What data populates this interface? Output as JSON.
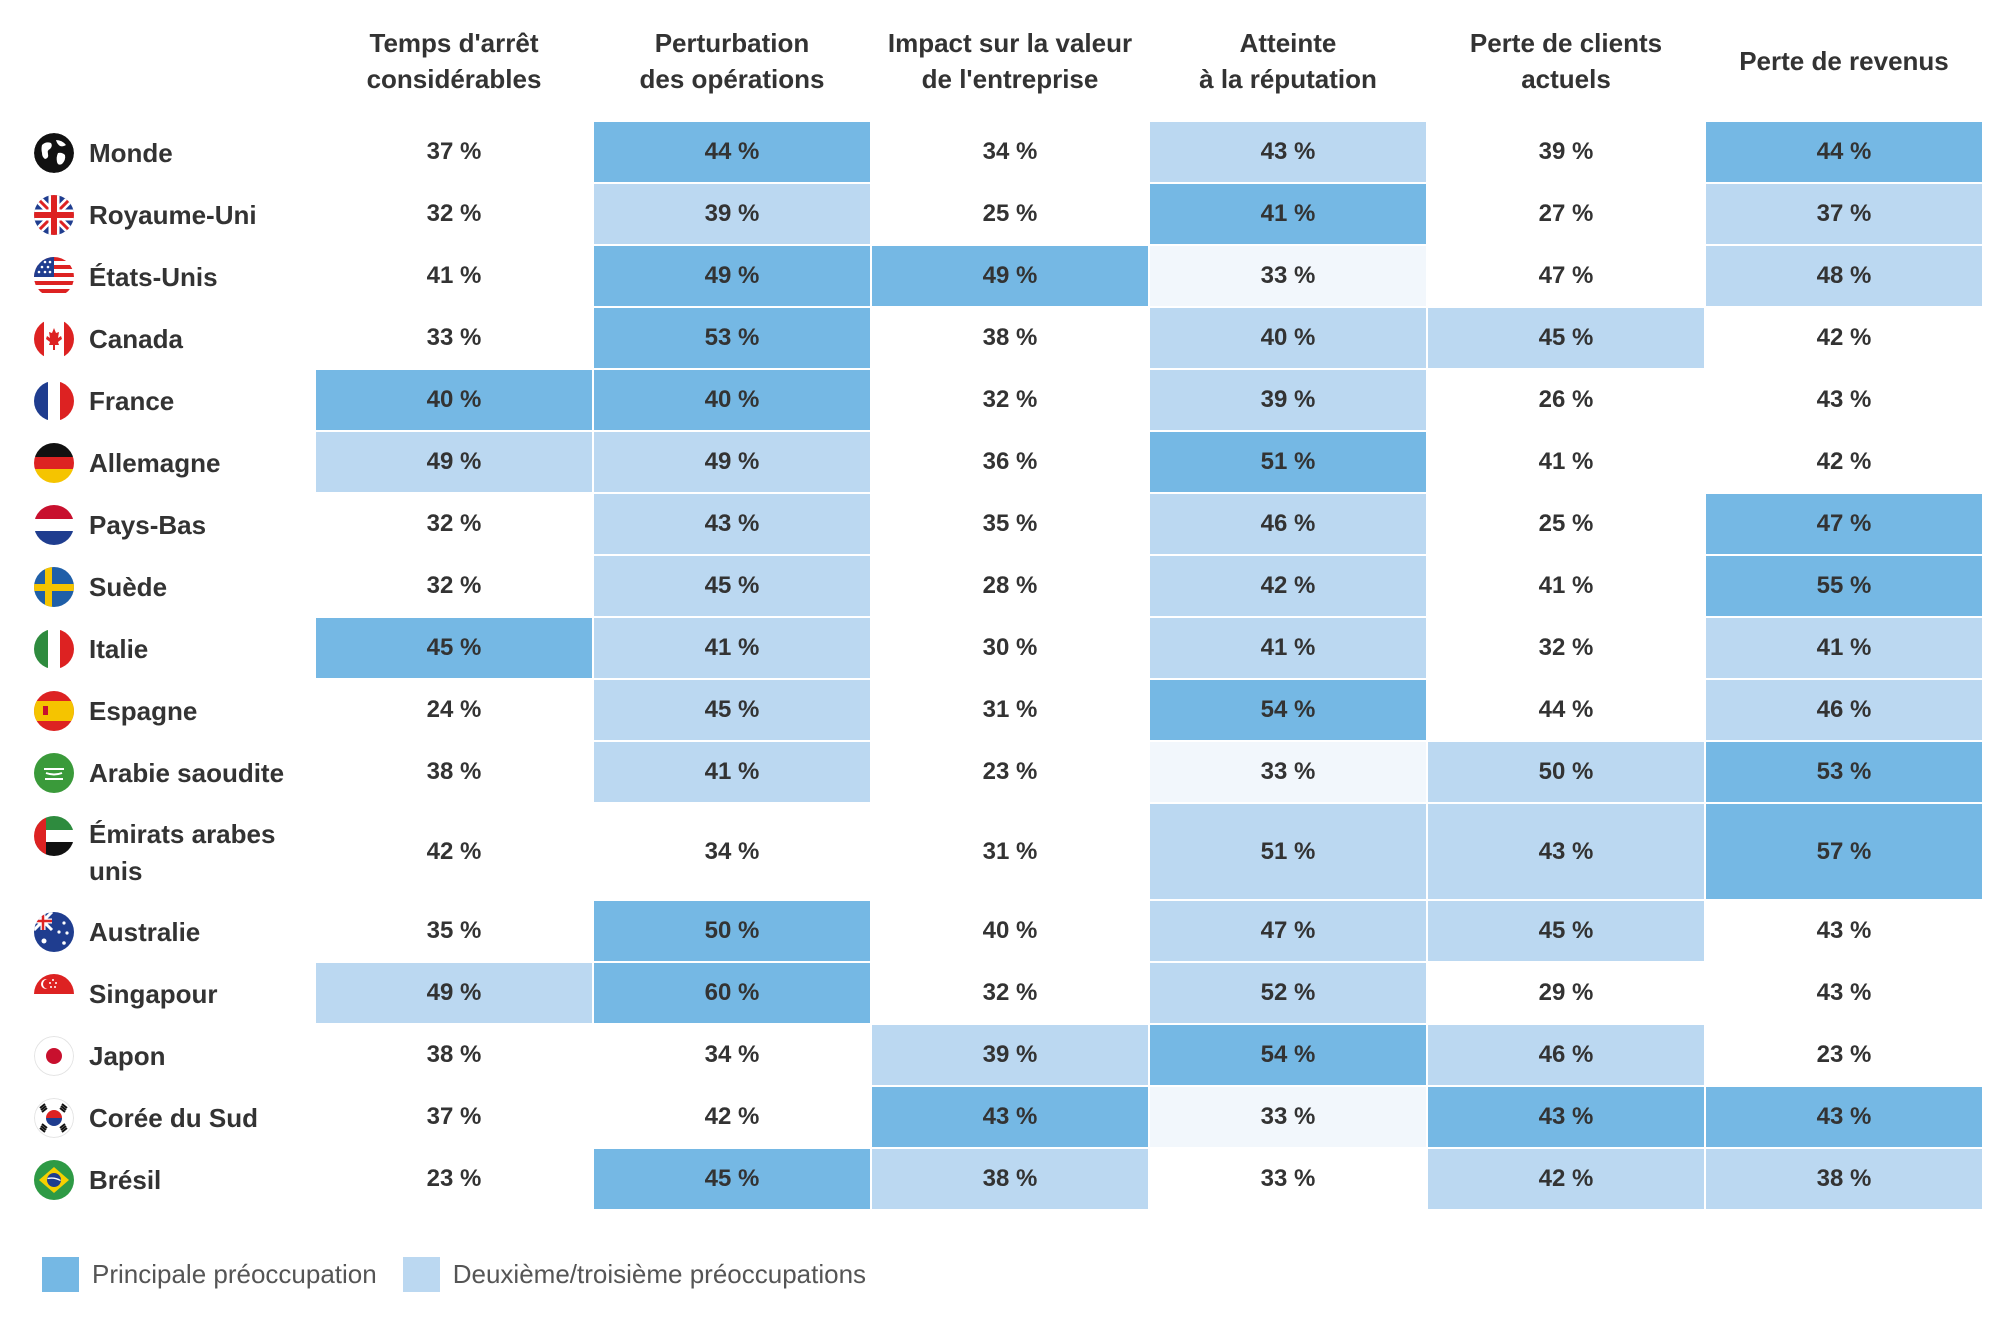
{
  "chart_data": {
    "type": "table",
    "columns": [
      "Temps d'arrêt\nconsidérables",
      "Perturbation\ndes opérations",
      "Impact sur la valeur\nde l'entreprise",
      "Atteinte\nà la réputation",
      "Perte de clients\nactuels",
      "Perte de revenus"
    ],
    "rows": [
      {
        "country": "Monde",
        "flag": "globe-icon",
        "values": [
          "37 %",
          "44 %",
          "34 %",
          "43 %",
          "39 %",
          "44 %"
        ],
        "levels": [
          "none",
          "primary",
          "none",
          "secondary",
          "none",
          "primary"
        ]
      },
      {
        "country": "Royaume-Uni",
        "flag": "uk-flag-icon",
        "values": [
          "32 %",
          "39 %",
          "25 %",
          "41 %",
          "27 %",
          "37 %"
        ],
        "levels": [
          "none",
          "secondary",
          "none",
          "primary",
          "none",
          "secondary"
        ]
      },
      {
        "country": "États-Unis",
        "flag": "us-flag-icon",
        "values": [
          "41 %",
          "49 %",
          "49 %",
          "33 %",
          "47 %",
          "48 %"
        ],
        "levels": [
          "none",
          "primary",
          "primary",
          "faint",
          "none",
          "secondary"
        ]
      },
      {
        "country": "Canada",
        "flag": "canada-flag-icon",
        "values": [
          "33 %",
          "53 %",
          "38 %",
          "40 %",
          "45 %",
          "42 %"
        ],
        "levels": [
          "none",
          "primary",
          "none",
          "secondary",
          "secondary",
          "none"
        ]
      },
      {
        "country": "France",
        "flag": "france-flag-icon",
        "values": [
          "40 %",
          "40 %",
          "32 %",
          "39 %",
          "26 %",
          "43 %"
        ],
        "levels": [
          "primary",
          "primary",
          "none",
          "secondary",
          "none",
          "none"
        ]
      },
      {
        "country": "Allemagne",
        "flag": "germany-flag-icon",
        "values": [
          "49 %",
          "49 %",
          "36 %",
          "51 %",
          "41 %",
          "42 %"
        ],
        "levels": [
          "secondary",
          "secondary",
          "none",
          "primary",
          "none",
          "none"
        ]
      },
      {
        "country": "Pays-Bas",
        "flag": "netherlands-flag-icon",
        "values": [
          "32 %",
          "43 %",
          "35 %",
          "46 %",
          "25 %",
          "47 %"
        ],
        "levels": [
          "none",
          "secondary",
          "none",
          "secondary",
          "none",
          "primary"
        ]
      },
      {
        "country": "Suède",
        "flag": "sweden-flag-icon",
        "values": [
          "32 %",
          "45 %",
          "28 %",
          "42 %",
          "41 %",
          "55 %"
        ],
        "levels": [
          "none",
          "secondary",
          "none",
          "secondary",
          "none",
          "primary"
        ]
      },
      {
        "country": "Italie",
        "flag": "italy-flag-icon",
        "values": [
          "45 %",
          "41 %",
          "30 %",
          "41 %",
          "32 %",
          "41 %"
        ],
        "levels": [
          "primary",
          "secondary",
          "none",
          "secondary",
          "none",
          "secondary"
        ]
      },
      {
        "country": "Espagne",
        "flag": "spain-flag-icon",
        "values": [
          "24 %",
          "45 %",
          "31 %",
          "54 %",
          "44 %",
          "46 %"
        ],
        "levels": [
          "none",
          "secondary",
          "none",
          "primary",
          "none",
          "secondary"
        ]
      },
      {
        "country": "Arabie saoudite",
        "flag": "saudi-arabia-flag-icon",
        "values": [
          "38 %",
          "41 %",
          "23 %",
          "33 %",
          "50 %",
          "53 %"
        ],
        "levels": [
          "none",
          "secondary",
          "none",
          "faint",
          "secondary",
          "primary"
        ]
      },
      {
        "country": "Émirats arabes unis",
        "flag": "uae-flag-icon",
        "values": [
          "42 %",
          "34 %",
          "31 %",
          "51 %",
          "43 %",
          "57 %"
        ],
        "levels": [
          "none",
          "none",
          "none",
          "secondary",
          "secondary",
          "primary"
        ],
        "tall": true
      },
      {
        "country": "Australie",
        "flag": "australia-flag-icon",
        "values": [
          "35 %",
          "50 %",
          "40 %",
          "47 %",
          "45 %",
          "43 %"
        ],
        "levels": [
          "none",
          "primary",
          "none",
          "secondary",
          "secondary",
          "none"
        ]
      },
      {
        "country": "Singapour",
        "flag": "singapore-flag-icon",
        "values": [
          "49 %",
          "60 %",
          "32 %",
          "52 %",
          "29 %",
          "43 %"
        ],
        "levels": [
          "secondary",
          "primary",
          "none",
          "secondary",
          "none",
          "none"
        ]
      },
      {
        "country": "Japon",
        "flag": "japan-flag-icon",
        "values": [
          "38 %",
          "34 %",
          "39 %",
          "54 %",
          "46 %",
          "23 %"
        ],
        "levels": [
          "none",
          "none",
          "secondary",
          "primary",
          "secondary",
          "none"
        ]
      },
      {
        "country": "Corée du Sud",
        "flag": "south-korea-flag-icon",
        "values": [
          "37 %",
          "42 %",
          "43 %",
          "33 %",
          "43 %",
          "43 %"
        ],
        "levels": [
          "none",
          "none",
          "primary",
          "faint",
          "primary",
          "primary"
        ]
      },
      {
        "country": "Brésil",
        "flag": "brazil-flag-icon",
        "values": [
          "23 %",
          "45 %",
          "38 %",
          "33 %",
          "42 %",
          "38 %"
        ],
        "levels": [
          "none",
          "primary",
          "secondary",
          "none",
          "secondary",
          "secondary"
        ]
      }
    ],
    "legend": [
      {
        "label": "Principale préoccupation",
        "level": "primary",
        "color": "#75b8e4"
      },
      {
        "label": "Deuxième/troisième préoccupations",
        "level": "secondary",
        "color": "#bbd8f1"
      }
    ]
  },
  "colors": {
    "primary": "#75b8e4",
    "secondary": "#bbd8f1",
    "faint": "#f2f7fc",
    "text": "#333333"
  }
}
